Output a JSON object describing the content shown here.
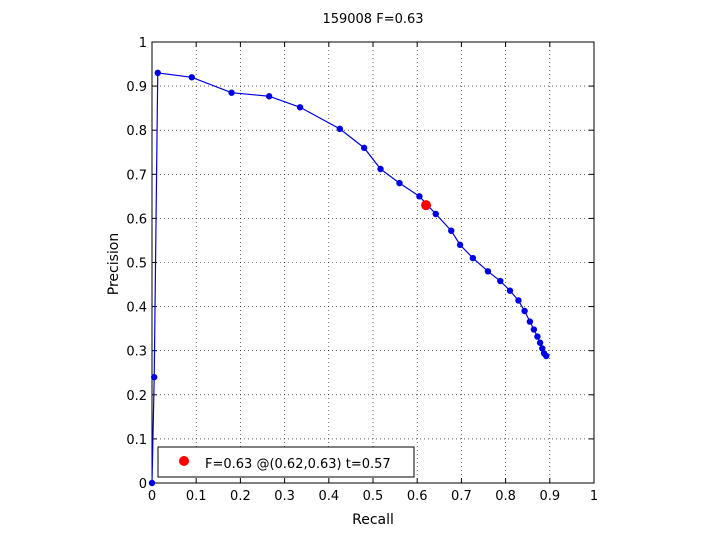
{
  "chart_data": {
    "type": "line",
    "title": "159008 F=0.63",
    "xlabel": "Recall",
    "ylabel": "Precision",
    "xlim": [
      0,
      1
    ],
    "ylim": [
      0,
      1
    ],
    "xticks": [
      0,
      0.1,
      0.2,
      0.3,
      0.4,
      0.5,
      0.6,
      0.7,
      0.8,
      0.9,
      1
    ],
    "yticks": [
      0,
      0.1,
      0.2,
      0.3,
      0.4,
      0.5,
      0.6,
      0.7,
      0.8,
      0.9,
      1
    ],
    "xtick_labels": [
      "0",
      "0.1",
      "0.2",
      "0.3",
      "0.4",
      "0.5",
      "0.6",
      "0.7",
      "0.8",
      "0.9",
      "1"
    ],
    "ytick_labels": [
      "0",
      "0.1",
      "0.2",
      "0.3",
      "0.4",
      "0.5",
      "0.6",
      "0.7",
      "0.8",
      "0.9",
      "1"
    ],
    "grid": true,
    "grid_style": "dotted",
    "legend_position": "bottom-left",
    "series": [
      {
        "color": "#0000e6",
        "marker": "circle",
        "x": [
          0.0,
          0.005,
          0.013,
          0.09,
          0.18,
          0.265,
          0.335,
          0.425,
          0.48,
          0.517,
          0.56,
          0.605,
          0.642,
          0.677,
          0.697,
          0.726,
          0.76,
          0.788,
          0.81,
          0.829,
          0.843,
          0.855,
          0.864,
          0.872,
          0.878,
          0.883,
          0.887,
          0.892
        ],
        "y": [
          0.0,
          0.24,
          0.93,
          0.92,
          0.885,
          0.877,
          0.852,
          0.803,
          0.76,
          0.712,
          0.68,
          0.65,
          0.61,
          0.572,
          0.54,
          0.51,
          0.48,
          0.458,
          0.436,
          0.414,
          0.39,
          0.366,
          0.348,
          0.332,
          0.318,
          0.305,
          0.294,
          0.288
        ]
      }
    ],
    "highlight": {
      "color": "#ff0000",
      "x": 0.62,
      "y": 0.63,
      "legend_text": "F=0.63 @(0.62,0.63) t=0.57"
    }
  }
}
